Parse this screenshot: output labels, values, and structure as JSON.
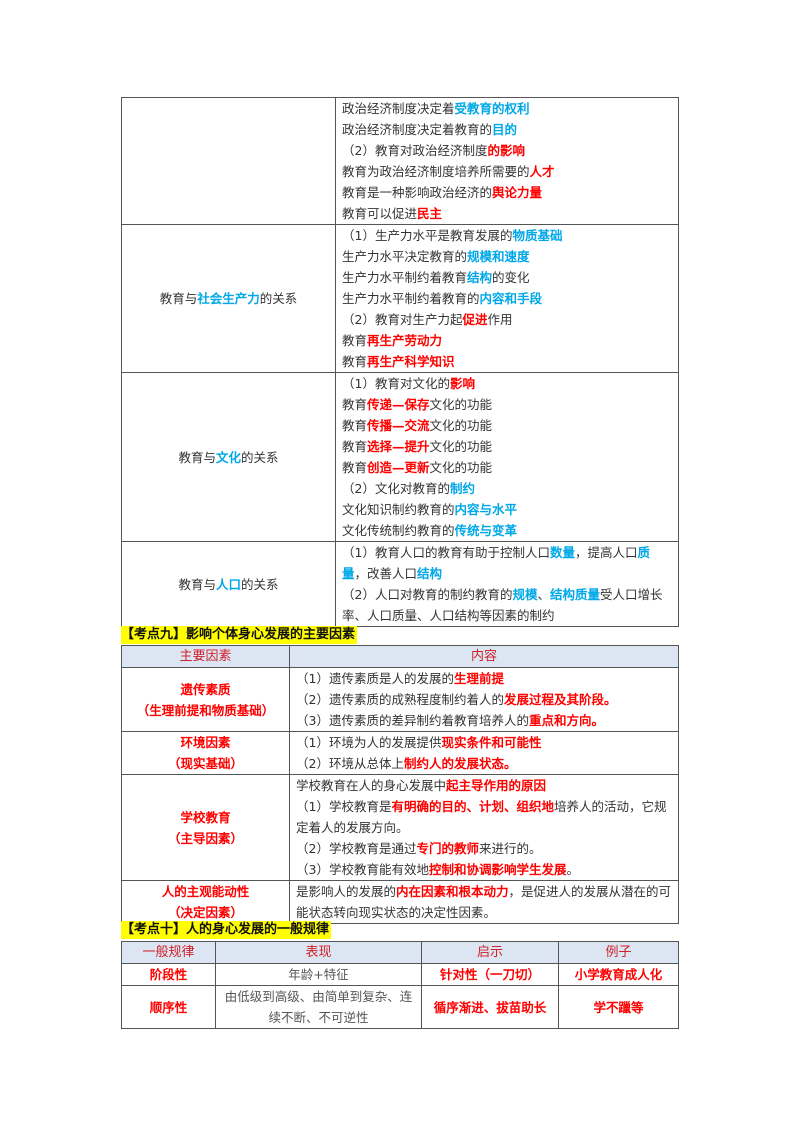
{
  "colors": {
    "blue": "#00a8e8",
    "red": "#ff0000",
    "heading_bg": "#ffff00",
    "header_bg": "#dce6f2"
  },
  "table1": {
    "rows": [
      {
        "label": [],
        "lines": [
          [
            [
              "政治经济制度决定着",
              "n"
            ],
            [
              "受教育的权利",
              "b"
            ]
          ],
          [
            [
              "政治经济制度决定着教育的",
              "n"
            ],
            [
              "目的",
              "b"
            ]
          ],
          [
            [
              "（2）教育对政治经济制度",
              "n"
            ],
            [
              "的影响",
              "r"
            ]
          ],
          [
            [
              "教育为政治经济制度培养所需要的",
              "n"
            ],
            [
              "人才",
              "r"
            ]
          ],
          [
            [
              "教育是一种影响政治经济的",
              "n"
            ],
            [
              "舆论力量",
              "r"
            ]
          ],
          [
            [
              "教育可以促进",
              "n"
            ],
            [
              "民主",
              "r"
            ]
          ]
        ]
      },
      {
        "label": [
          [
            "教育与",
            "n"
          ],
          [
            "社会生产力",
            "b"
          ],
          [
            "的关系",
            "n"
          ]
        ],
        "lines": [
          [
            [
              "（1）生产力水平是教育发展的",
              "n"
            ],
            [
              "物质基础",
              "b"
            ]
          ],
          [
            [
              "生产力水平决定教育的",
              "n"
            ],
            [
              "规模和速度",
              "b"
            ]
          ],
          [
            [
              "生产力水平制约着教育",
              "n"
            ],
            [
              "结构",
              "b"
            ],
            [
              "的变化",
              "n"
            ]
          ],
          [
            [
              "生产力水平制约着教育的",
              "n"
            ],
            [
              "内容和手段",
              "b"
            ]
          ],
          [
            [
              "（2）教育对生产力起",
              "n"
            ],
            [
              "促进",
              "r"
            ],
            [
              "作用",
              "n"
            ]
          ],
          [
            [
              "教育",
              "n"
            ],
            [
              "再生产劳动力",
              "r"
            ]
          ],
          [
            [
              "教育",
              "n"
            ],
            [
              "再生产科学知识",
              "r"
            ]
          ]
        ]
      },
      {
        "label": [
          [
            "教育与",
            "n"
          ],
          [
            "文化",
            "b"
          ],
          [
            "的关系",
            "n"
          ]
        ],
        "lines": [
          [
            [
              "（1）教育对文化的",
              "n"
            ],
            [
              "影响",
              "r"
            ]
          ],
          [
            [
              "教育",
              "n"
            ],
            [
              "传递—保存",
              "r"
            ],
            [
              "文化的功能",
              "n"
            ]
          ],
          [
            [
              "教育",
              "n"
            ],
            [
              "传播—交流",
              "r"
            ],
            [
              "文化的功能",
              "n"
            ]
          ],
          [
            [
              "教育",
              "n"
            ],
            [
              "选择—提升",
              "r"
            ],
            [
              "文化的功能",
              "n"
            ]
          ],
          [
            [
              "教育",
              "n"
            ],
            [
              "创造—更新",
              "r"
            ],
            [
              "文化的功能",
              "n"
            ]
          ],
          [
            [
              "（2）文化对教育的",
              "n"
            ],
            [
              "制约",
              "b"
            ]
          ],
          [
            [
              "文化知识制约教育的",
              "n"
            ],
            [
              "内容与水平",
              "b"
            ]
          ],
          [
            [
              "文化传统制约教育的",
              "n"
            ],
            [
              "传统与变革",
              "b"
            ]
          ]
        ]
      },
      {
        "label": [
          [
            "教育与",
            "n"
          ],
          [
            "人口",
            "b"
          ],
          [
            "的关系",
            "n"
          ]
        ],
        "wrap": true,
        "lines": [
          [
            [
              "（1）教育人口的教育有助于控制人口",
              "n"
            ],
            [
              "数量",
              "b"
            ],
            [
              "，提高人口",
              "n"
            ],
            [
              "质量",
              "b"
            ],
            [
              "，改善人口",
              "n"
            ],
            [
              "结构",
              "b"
            ]
          ],
          [
            [
              "（2）人口对教育的制约教育的",
              "n"
            ],
            [
              "规模",
              "b"
            ],
            [
              "、",
              "n"
            ],
            [
              "结构质量",
              "b"
            ],
            [
              "受人口增长率、人口质量、人口结构等因素的制约",
              "n"
            ]
          ]
        ]
      }
    ]
  },
  "section9": {
    "title": "【考点九】影响个体身心发展的主要因素",
    "headers": [
      "主要因素",
      "内容"
    ],
    "rows": [
      {
        "factor": [
          "遗传素质",
          "（生理前提和物质基础）"
        ],
        "lines": [
          [
            [
              "（1）遗传素质是人的发展的",
              "n"
            ],
            [
              "生理前提",
              "r"
            ]
          ],
          [
            [
              "（2）遗传素质的成熟程度制约着人的",
              "n"
            ],
            [
              "发展过程及其阶段。",
              "r"
            ]
          ],
          [
            [
              "（3）遗传素质的差异制约着教育培养人的",
              "n"
            ],
            [
              "重点和方向。",
              "r"
            ]
          ]
        ]
      },
      {
        "factor": [
          "环境因素",
          "（现实基础）"
        ],
        "lines": [
          [
            [
              "（1）环境为人的发展提供",
              "n"
            ],
            [
              "现实条件和可能性",
              "r"
            ]
          ],
          [
            [
              "（2）环境从总体上",
              "n"
            ],
            [
              "制约人的发展状态。",
              "r"
            ]
          ]
        ]
      },
      {
        "factor": [
          "学校教育",
          "（主导因素）"
        ],
        "wrap": true,
        "lines": [
          [
            [
              "学校教育在人的身心发展中",
              "n"
            ],
            [
              "起主导作用的原因",
              "r"
            ]
          ],
          [
            [
              "（1）学校教育是",
              "n"
            ],
            [
              "有明确的目的、计划、组织地",
              "r"
            ],
            [
              "培养人的活动，它规定着人的发展方向。",
              "n"
            ]
          ],
          [
            [
              "（2）学校教育是通过",
              "n"
            ],
            [
              "专门的教师",
              "r"
            ],
            [
              "来进行的。",
              "n"
            ]
          ],
          [
            [
              "（3）学校教育能有效地",
              "n"
            ],
            [
              "控制和协调影响学生发展",
              "r"
            ],
            [
              "。",
              "n"
            ]
          ]
        ]
      },
      {
        "factor": [
          "人的主观能动性",
          "（决定因素）"
        ],
        "wrap": true,
        "lines": [
          [
            [
              "是影响人的发展的",
              "n"
            ],
            [
              "内在因素和根本动力",
              "r"
            ],
            [
              "，是促进人的发展从潜在的可能状态转向现实状态的决定性因素。",
              "n"
            ]
          ]
        ]
      }
    ]
  },
  "section10": {
    "title": "【考点十】人的身心发展的一般规律",
    "headers": [
      "一般规律",
      "表现",
      "启示",
      "例子"
    ],
    "rows": [
      [
        "阶段性",
        "年龄+特征",
        "针对性（一刀切）",
        "小学教育成人化"
      ],
      [
        "顺序性",
        "由低级到高级、由简单到复杂、连续不断、不可逆性",
        "循序渐进、拔苗助长",
        "学不躐等"
      ]
    ]
  }
}
